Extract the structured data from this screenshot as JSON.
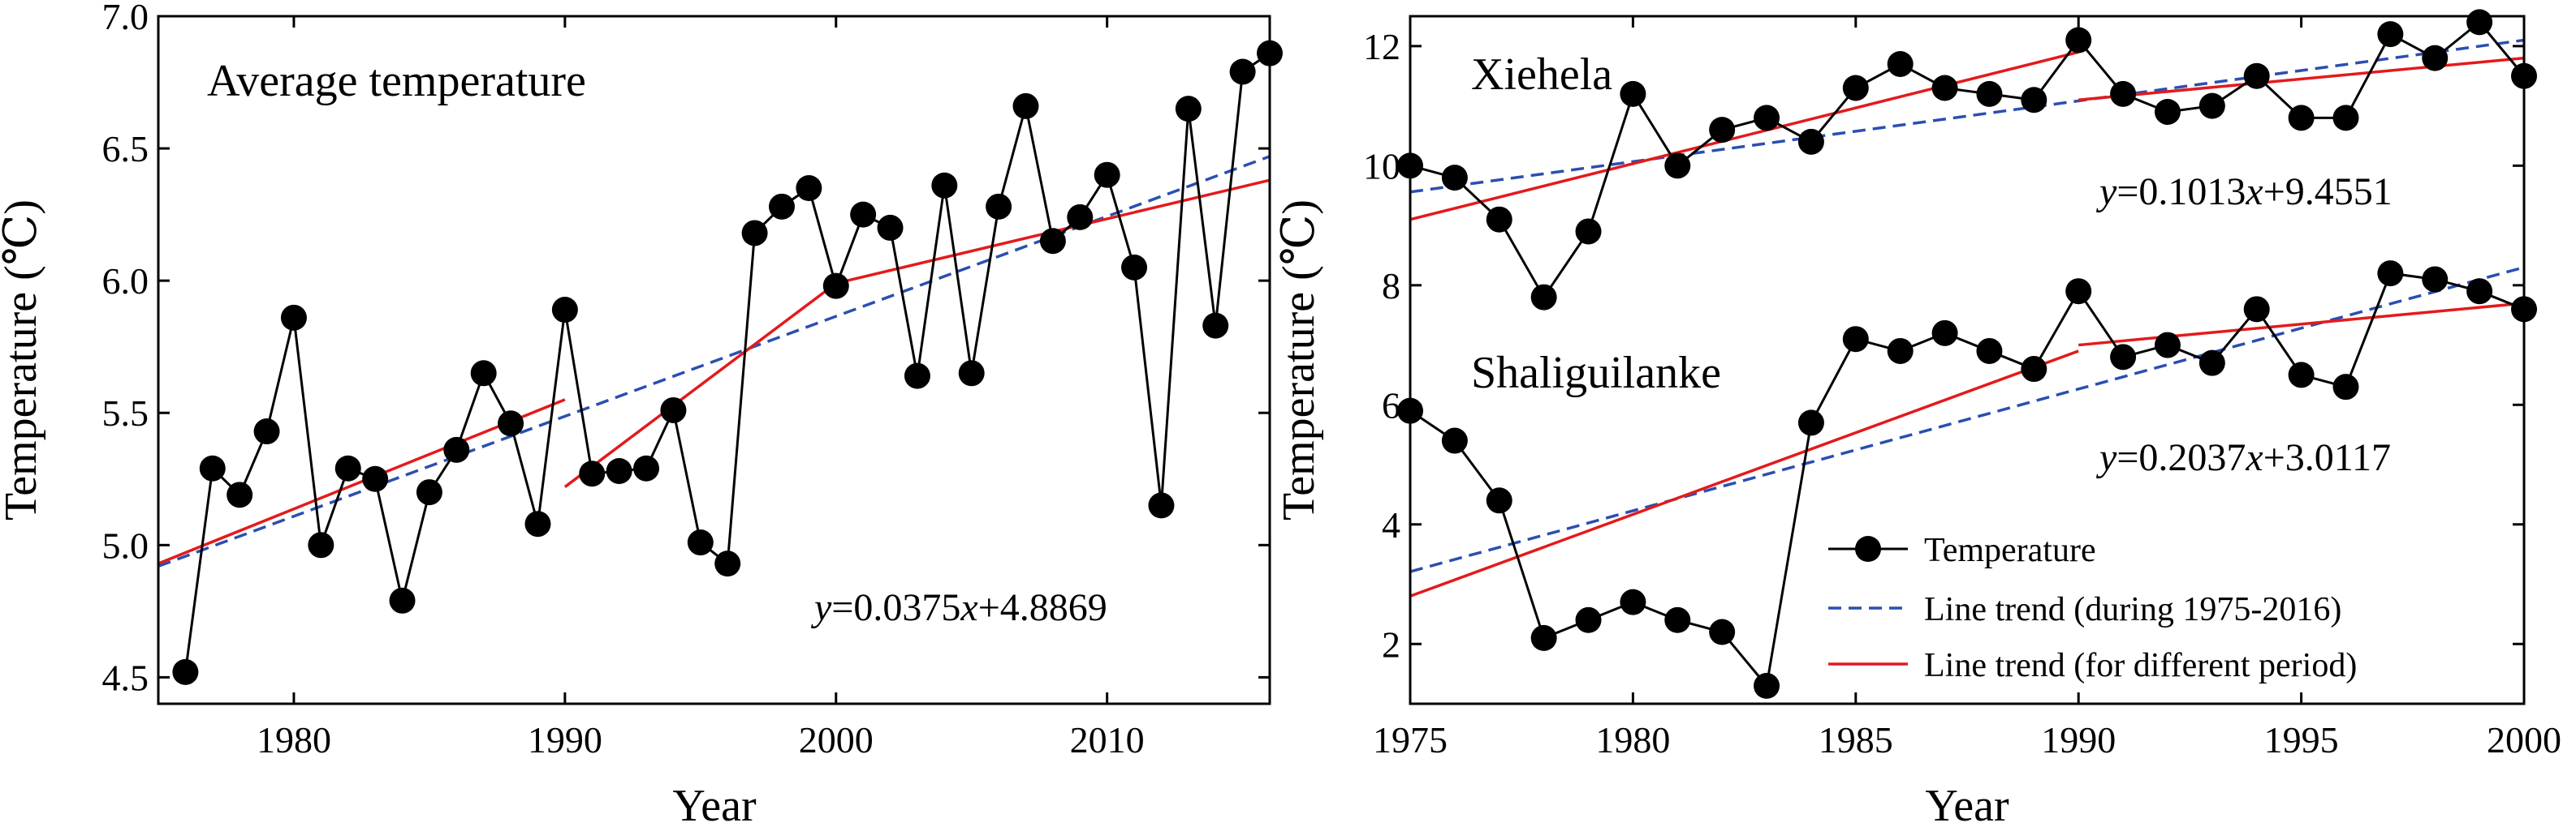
{
  "chart_data": [
    {
      "type": "line",
      "title": "Average temperature",
      "xlabel": "Year",
      "ylabel": "Temperature (℃)",
      "xlim": [
        1975,
        2016
      ],
      "ylim": [
        4.4,
        7.0
      ],
      "xticks": [
        "1980",
        "1990",
        "2000",
        "2010"
      ],
      "yticks": [
        "4.5",
        "5.0",
        "5.5",
        "6.0",
        "6.5",
        "7.0"
      ],
      "equation": {
        "y": "y",
        "eq": "=0.0375",
        "x": "x",
        "rest": "+4.8869"
      },
      "series": [
        {
          "name": "Temperature",
          "color": "#000000",
          "x": [
            1976,
            1977,
            1978,
            1979,
            1980,
            1981,
            1982,
            1983,
            1984,
            1985,
            1986,
            1987,
            1988,
            1989,
            1990,
            1991,
            1992,
            1993,
            1994,
            1995,
            1996,
            1997,
            1998,
            1999,
            2000,
            2001,
            2002,
            2003,
            2004,
            2005,
            2006,
            2007,
            2008,
            2009,
            2010,
            2011,
            2012,
            2013,
            2014,
            2015,
            2016
          ],
          "y": [
            4.52,
            5.29,
            5.19,
            5.43,
            5.86,
            5.0,
            5.29,
            5.25,
            4.79,
            5.2,
            5.36,
            5.65,
            5.46,
            5.08,
            5.89,
            5.27,
            5.28,
            5.29,
            5.51,
            5.01,
            4.93,
            6.18,
            6.28,
            6.35,
            5.98,
            6.25,
            6.2,
            5.64,
            6.36,
            5.65,
            6.28,
            6.66,
            6.15,
            6.24,
            6.4,
            6.05,
            5.15,
            6.65,
            5.83,
            6.79,
            6.86
          ]
        }
      ],
      "trend_all": {
        "name": "Line trend (during 1975-2016)",
        "color": "#2b4fb0",
        "x": [
          1975,
          2016
        ],
        "y": [
          4.92,
          6.47
        ]
      },
      "trend_periods": {
        "name": "Line trend (for different period)",
        "color": "#e31a1c",
        "segments": [
          {
            "x": [
              1975,
              1990
            ],
            "y": [
              4.93,
              5.55
            ]
          },
          {
            "x": [
              1990,
              2000
            ],
            "y": [
              5.22,
              5.99
            ]
          },
          {
            "x": [
              2000,
              2016
            ],
            "y": [
              5.99,
              6.38
            ]
          }
        ]
      }
    },
    {
      "type": "line",
      "xlabel": "Year",
      "ylabel": "Temperature (℃)",
      "xlim": [
        1975,
        2000
      ],
      "ylim": [
        1.0,
        12.5
      ],
      "xticks": [
        "1975",
        "1980",
        "1985",
        "1990",
        "1995",
        "2000"
      ],
      "yticks": [
        "2",
        "4",
        "6",
        "8",
        "10",
        "12"
      ],
      "labels": {
        "top": "Xiehela",
        "bottom": "Shaliguilanke"
      },
      "equations": [
        {
          "y": "y",
          "eq": "=0.1013",
          "x": "x",
          "rest": "+9.4551"
        },
        {
          "y": "y",
          "eq": "=0.2037",
          "x": "x",
          "rest": "+3.0117"
        }
      ],
      "series": [
        {
          "name": "Xiehela",
          "color": "#000000",
          "x": [
            1975,
            1976,
            1977,
            1978,
            1979,
            1980,
            1981,
            1982,
            1983,
            1984,
            1985,
            1986,
            1987,
            1988,
            1989,
            1990,
            1991,
            1992,
            1993,
            1994,
            1995,
            1996,
            1997,
            1998,
            1999,
            2000
          ],
          "y": [
            10.0,
            9.8,
            9.1,
            7.8,
            8.9,
            11.2,
            10.0,
            10.6,
            10.8,
            10.4,
            11.3,
            11.7,
            11.3,
            11.2,
            11.1,
            12.1,
            11.2,
            10.9,
            11.0,
            11.5,
            10.8,
            10.8,
            12.2,
            11.8,
            12.4,
            11.5
          ]
        },
        {
          "name": "Shaliguilanke",
          "color": "#000000",
          "x": [
            1975,
            1976,
            1977,
            1978,
            1979,
            1980,
            1981,
            1982,
            1983,
            1984,
            1985,
            1986,
            1987,
            1988,
            1989,
            1990,
            1991,
            1992,
            1993,
            1994,
            1995,
            1996,
            1997,
            1998,
            1999,
            2000
          ],
          "y": [
            5.9,
            5.4,
            4.4,
            2.1,
            2.4,
            2.7,
            2.4,
            2.2,
            1.3,
            5.7,
            7.1,
            6.9,
            7.2,
            6.9,
            6.6,
            7.9,
            6.8,
            7.0,
            6.7,
            7.6,
            6.5,
            6.3,
            8.2,
            8.1,
            7.9,
            7.6
          ]
        }
      ],
      "trend_all": [
        {
          "series": "Xiehela",
          "color": "#2b4fb0",
          "x": [
            1975,
            2000
          ],
          "y": [
            9.56,
            12.1
          ]
        },
        {
          "series": "Shaliguilanke",
          "color": "#2b4fb0",
          "x": [
            1975,
            2000
          ],
          "y": [
            3.21,
            8.3
          ]
        }
      ],
      "trend_periods": [
        {
          "series": "Xiehela",
          "color": "#e31a1c",
          "x": [
            1975,
            1990
          ],
          "y": [
            9.1,
            11.9
          ]
        },
        {
          "series": "Xiehela",
          "color": "#e31a1c",
          "x": [
            1990,
            2000
          ],
          "y": [
            11.1,
            11.8
          ]
        },
        {
          "series": "Shaliguilanke",
          "color": "#e31a1c",
          "x": [
            1975,
            1990
          ],
          "y": [
            2.8,
            6.9
          ]
        },
        {
          "series": "Shaliguilanke",
          "color": "#e31a1c",
          "x": [
            1990,
            2000
          ],
          "y": [
            7.0,
            7.7
          ]
        }
      ],
      "legend": {
        "position": "bottom-right",
        "items": [
          {
            "label": "Temperature",
            "style": "marker-line",
            "color": "#000000"
          },
          {
            "label": "Line trend (during 1975-2016)",
            "style": "dashed",
            "color": "#2b4fb0"
          },
          {
            "label": "Line trend (for different period)",
            "style": "solid",
            "color": "#e31a1c"
          }
        ]
      }
    }
  ]
}
